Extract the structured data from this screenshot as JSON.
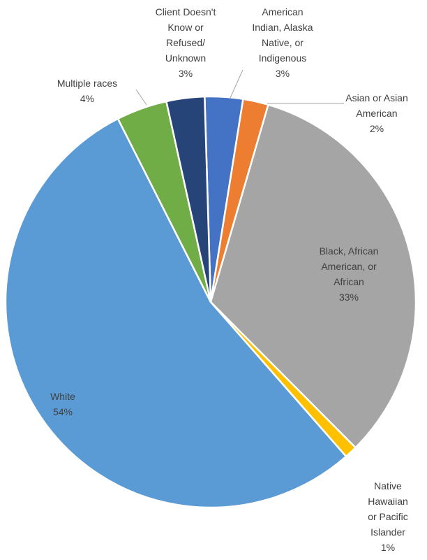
{
  "chart_data": {
    "type": "pie",
    "title": "",
    "slices": [
      {
        "label_lines": [
          "American",
          "Indian, Alaska",
          "Native, or",
          "Indigenous"
        ],
        "pct_label": "3%",
        "value": 3,
        "color": "#4472C4"
      },
      {
        "label_lines": [
          "Asian or Asian",
          "American"
        ],
        "pct_label": "2%",
        "value": 2,
        "color": "#ED7D31"
      },
      {
        "label_lines": [
          "Black, African",
          "American, or",
          "African"
        ],
        "pct_label": "33%",
        "value": 33,
        "color": "#A5A5A5"
      },
      {
        "label_lines": [
          "Native",
          "Hawaiian",
          "or Pacific",
          "Islander"
        ],
        "pct_label": "1%",
        "value": 1,
        "color": "#FFC000"
      },
      {
        "label_lines": [
          "White"
        ],
        "pct_label": "54%",
        "value": 54,
        "color": "#5B9BD5"
      },
      {
        "label_lines": [
          "Multiple races"
        ],
        "pct_label": "4%",
        "value": 4,
        "color": "#70AD47"
      },
      {
        "label_lines": [
          "Client Doesn't",
          "Know or",
          "Refused/",
          "Unknown"
        ],
        "pct_label": "3%",
        "value": 3,
        "color": "#264478"
      }
    ]
  }
}
